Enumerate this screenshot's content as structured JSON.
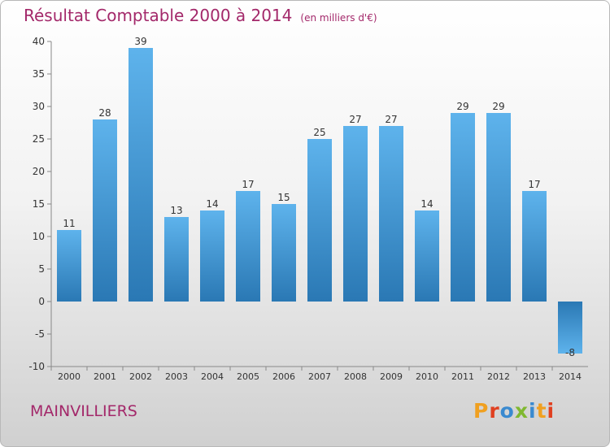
{
  "header": {
    "title": "Résultat Comptable 2000 à 2014",
    "unit_note": "(en milliers d'€)"
  },
  "footer": {
    "commune": "MAINVILLIERS",
    "logo_text": "Proxiti",
    "logo_colors": [
      "#f0a020",
      "#e04020",
      "#3a8ad0",
      "#80b830",
      "#3a8ad0",
      "#f0a020",
      "#e04020"
    ]
  },
  "chart_data": {
    "type": "bar",
    "title": "Résultat Comptable 2000 à 2014",
    "categories": [
      "2000",
      "2001",
      "2002",
      "2003",
      "2004",
      "2005",
      "2006",
      "2007",
      "2008",
      "2009",
      "2010",
      "2011",
      "2012",
      "2013",
      "2014"
    ],
    "values": [
      11,
      28,
      39,
      13,
      14,
      17,
      15,
      25,
      27,
      27,
      14,
      29,
      29,
      17,
      -8
    ],
    "data_labels": [
      "11",
      "28",
      "39",
      "13",
      "14",
      "17",
      "15",
      "25",
      "27",
      "27",
      "14",
      "29",
      "29",
      "17",
      "-8"
    ],
    "yticks": [
      "40",
      "35",
      "30",
      "25",
      "20",
      "15",
      "10",
      "5",
      "0",
      "-5",
      "-10"
    ],
    "ylim": [
      -10,
      40
    ],
    "xlabel": "",
    "ylabel": "",
    "grid": false,
    "bar_color_top": "#5eb3ec",
    "bar_color_bottom": "#2a78b4"
  }
}
